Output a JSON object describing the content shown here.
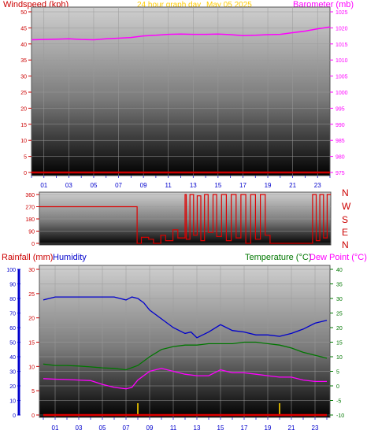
{
  "header": {
    "wind_label": "Windspeed (kph)",
    "title": "24 hour graph day",
    "date": "May 05 2025",
    "baro_label": "Barometer (mb)"
  },
  "colors": {
    "wind": "#cc0000",
    "barometer": "#ff00ff",
    "title": "#ffcc00",
    "direction": "#dd0000",
    "rain": "#dd0000",
    "humidity": "#0000cc",
    "temperature": "#007700",
    "dewpoint": "#ff00ff",
    "hum_axis": "#0000cc"
  },
  "compass": [
    "N",
    "W",
    "S",
    "E",
    "N"
  ],
  "lower_header": {
    "rain_label": "Rainfall (mm)",
    "humidity_label": "Humidity",
    "temp_label": "Temperature (°C)",
    "dew_label": "Dew Point (°C)"
  },
  "chart_data": [
    {
      "type": "line",
      "panel": "wind-barometer",
      "x_ticks": [
        "01",
        "03",
        "05",
        "07",
        "09",
        "11",
        "13",
        "15",
        "17",
        "19",
        "21",
        "23"
      ],
      "y_left": {
        "label": "Windspeed (kph)",
        "ticks": [
          0,
          5,
          10,
          15,
          20,
          25,
          30,
          35,
          40,
          45,
          50
        ],
        "lim": [
          0,
          50
        ]
      },
      "y_right": {
        "label": "Barometer (mb)",
        "ticks": [
          975,
          980,
          985,
          990,
          995,
          1000,
          1005,
          1010,
          1015,
          1020,
          1025
        ],
        "lim": [
          975,
          1025
        ]
      },
      "series": [
        {
          "name": "Windspeed (kph)",
          "axis": "left",
          "x": [
            0,
            24
          ],
          "values": [
            0,
            0
          ]
        },
        {
          "name": "Barometer (mb)",
          "axis": "right",
          "x": [
            0,
            1,
            2,
            3,
            4,
            5,
            6,
            7,
            8,
            9,
            10,
            11,
            12,
            13,
            14,
            15,
            16,
            17,
            18,
            19,
            20,
            21,
            22,
            23,
            24
          ],
          "values": [
            1016.3,
            1016.4,
            1016.5,
            1016.6,
            1016.4,
            1016.3,
            1016.6,
            1016.8,
            1017.0,
            1017.5,
            1017.7,
            1018.0,
            1018.1,
            1018.0,
            1018.0,
            1018.1,
            1017.9,
            1017.6,
            1017.7,
            1017.9,
            1018.0,
            1018.5,
            1019.0,
            1019.7,
            1020.3
          ]
        }
      ]
    },
    {
      "type": "line",
      "panel": "wind-direction",
      "y_ticks": [
        0,
        90,
        180,
        270,
        360
      ],
      "ylim": [
        0,
        360
      ],
      "series": [
        {
          "name": "Wind Direction",
          "x": [
            0,
            8.05,
            8.05,
            8.4,
            8.4,
            9.0,
            9.0,
            9.4,
            9.4,
            10.0,
            10.0,
            10.4,
            10.4,
            11.0,
            11.0,
            11.4,
            11.4,
            12.0,
            12.0,
            12.1,
            12.1,
            12.4,
            12.4,
            12.7,
            12.7,
            13.0,
            13.0,
            13.3,
            13.3,
            13.6,
            13.6,
            13.9,
            13.9,
            14.3,
            14.3,
            14.6,
            14.6,
            15.0,
            15.0,
            15.4,
            15.4,
            15.8,
            15.8,
            16.2,
            16.2,
            16.6,
            16.6,
            17.0,
            17.0,
            17.4,
            17.4,
            17.8,
            17.8,
            18.2,
            18.2,
            18.6,
            18.6,
            19.0,
            19.0,
            19.2,
            19.2,
            22.5,
            22.5,
            22.8,
            22.8,
            23.1,
            23.1,
            23.4,
            23.4,
            23.7,
            23.7,
            24
          ],
          "values": [
            270,
            270,
            0,
            0,
            45,
            45,
            30,
            30,
            0,
            0,
            60,
            60,
            20,
            20,
            100,
            100,
            40,
            40,
            360,
            360,
            30,
            30,
            360,
            360,
            60,
            60,
            350,
            350,
            20,
            20,
            360,
            360,
            80,
            80,
            360,
            360,
            50,
            50,
            360,
            360,
            20,
            20,
            360,
            360,
            40,
            40,
            360,
            360,
            0,
            0,
            360,
            360,
            30,
            30,
            360,
            360,
            60,
            60,
            0,
            0,
            0,
            0,
            360,
            360,
            20,
            20,
            360,
            360,
            40,
            40,
            360,
            360
          ]
        }
      ]
    },
    {
      "type": "line",
      "panel": "rain-humidity-temperature",
      "x_ticks": [
        "01",
        "03",
        "05",
        "07",
        "09",
        "11",
        "13",
        "15",
        "17",
        "19",
        "21",
        "23"
      ],
      "y_humidity": {
        "label": "Humidity",
        "ticks": [
          0,
          10,
          20,
          30,
          40,
          50,
          60,
          70,
          80,
          90,
          100
        ],
        "lim": [
          0,
          100
        ]
      },
      "y_rain": {
        "label": "Rainfall (mm)",
        "ticks": [
          0,
          5,
          10,
          15,
          20,
          25,
          30
        ],
        "lim": [
          0,
          30
        ]
      },
      "y_temp": {
        "label": "Temperature (°C)",
        "ticks": [
          -10,
          -5,
          0,
          5,
          10,
          15,
          20,
          25,
          30,
          35,
          40
        ],
        "lim": [
          -10,
          40
        ]
      },
      "series": [
        {
          "name": "Rainfall (mm)",
          "axis": "rain",
          "x": [
            0,
            24
          ],
          "values": [
            0,
            0
          ]
        },
        {
          "name": "Humidity",
          "axis": "humidity",
          "x": [
            0,
            0.5,
            1,
            2,
            3,
            4,
            5,
            6,
            7,
            7.5,
            8,
            8.5,
            9,
            10,
            11,
            12,
            12.5,
            13,
            14,
            15,
            16,
            17,
            18,
            19,
            20,
            21,
            22,
            23,
            24
          ],
          "values": [
            79,
            80,
            81,
            81,
            81,
            81,
            81,
            81,
            79,
            81,
            80,
            77,
            72,
            66,
            60,
            56,
            57,
            53,
            57,
            62,
            58,
            57,
            55,
            55,
            54,
            56,
            59,
            63,
            65
          ]
        },
        {
          "name": "Temperature (°C)",
          "axis": "temp",
          "x": [
            0,
            1,
            2,
            3,
            4,
            5,
            6,
            7,
            8,
            9,
            10,
            11,
            12,
            13,
            14,
            15,
            16,
            17,
            18,
            19,
            20,
            21,
            22,
            23,
            24
          ],
          "values": [
            7.5,
            7.0,
            7.0,
            6.8,
            6.5,
            6.2,
            6.0,
            5.5,
            7.0,
            10.0,
            12.5,
            13.5,
            14.0,
            14.0,
            14.5,
            14.5,
            14.5,
            15.0,
            15.0,
            14.5,
            14.0,
            13.0,
            11.5,
            10.5,
            9.5
          ]
        },
        {
          "name": "Dew Point (°C)",
          "axis": "temp",
          "x": [
            0,
            1,
            2,
            3,
            4,
            5,
            6,
            7,
            7.5,
            8,
            9,
            10,
            11,
            12,
            13,
            14,
            15,
            16,
            17,
            18,
            19,
            20,
            21,
            22,
            23,
            24
          ],
          "values": [
            2.5,
            2.3,
            2.2,
            2.0,
            1.8,
            0.5,
            -0.5,
            -1.0,
            -0.5,
            2.0,
            5.0,
            6.0,
            5.0,
            4.0,
            3.5,
            3.5,
            5.5,
            4.5,
            4.5,
            4.0,
            3.5,
            3.0,
            3.0,
            2.0,
            1.5,
            1.5
          ]
        }
      ],
      "rain_events_hours": [
        8.0,
        20.0
      ]
    }
  ]
}
